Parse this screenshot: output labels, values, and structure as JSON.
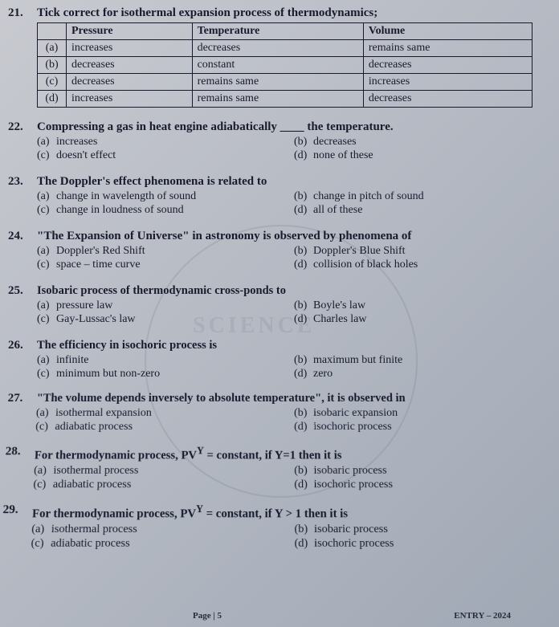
{
  "q21": {
    "num": "21.",
    "stem": "Tick correct for isothermal expansion process of thermodynamics;",
    "headers": [
      "",
      "Pressure",
      "Temperature",
      "Volume"
    ],
    "rows": [
      [
        "(a)",
        "increases",
        "decreases",
        "remains same"
      ],
      [
        "(b)",
        "decreases",
        "constant",
        "decreases"
      ],
      [
        "(c)",
        "decreases",
        "remains same",
        "increases"
      ],
      [
        "(d)",
        "increases",
        "remains same",
        "decreases"
      ]
    ]
  },
  "q22": {
    "num": "22.",
    "stem": "Compressing a gas in heat engine adiabatically ____ the temperature.",
    "a": "increases",
    "b": "decreases",
    "c": "doesn't effect",
    "d": "none of these"
  },
  "q23": {
    "num": "23.",
    "stem": "The Doppler's effect phenomena is related to",
    "a": "change in wavelength of sound",
    "b": "change in pitch of sound",
    "c": "change in loudness of sound",
    "d": "all of these"
  },
  "q24": {
    "num": "24.",
    "stem": "\"The Expansion of Universe\" in astronomy is observed by phenomena of",
    "a": "Doppler's Red Shift",
    "b": "Doppler's Blue Shift",
    "c": "space – time curve",
    "d": "collision of black holes"
  },
  "q25": {
    "num": "25.",
    "stem": "Isobaric process of thermodynamic cross-ponds to",
    "a": "pressure law",
    "b": "Boyle's law",
    "c": "Gay-Lussac's law",
    "d": "Charles law"
  },
  "q26": {
    "num": "26.",
    "stem": "The efficiency in isochoric process is",
    "a": "infinite",
    "b": "maximum but finite",
    "c": "minimum but non-zero",
    "d": "zero"
  },
  "q27": {
    "num": "27.",
    "stem": "\"The volume depends inversely to absolute temperature\", it is observed in",
    "a": "isothermal expansion",
    "b": "isobaric expansion",
    "c": "adiabatic process",
    "d": "isochoric process"
  },
  "q28": {
    "num": "28.",
    "stem_html": "For thermodynamic process, PV<sup>Y</sup> = constant, if Y=1 then it is",
    "a": "isothermal process",
    "b": "isobaric process",
    "c": "adiabatic process",
    "d": "isochoric process"
  },
  "q29": {
    "num": "29.",
    "stem_html": "For thermodynamic process, PV<sup>Y</sup> = constant, if Y > 1 then it is",
    "a": "isothermal process",
    "b": "isobaric process",
    "c": "adiabatic process",
    "d": "isochoric process"
  },
  "footer": {
    "page": "Page | 5",
    "tag": "ENTRY – 2024"
  },
  "watermark": "SCIENCE"
}
